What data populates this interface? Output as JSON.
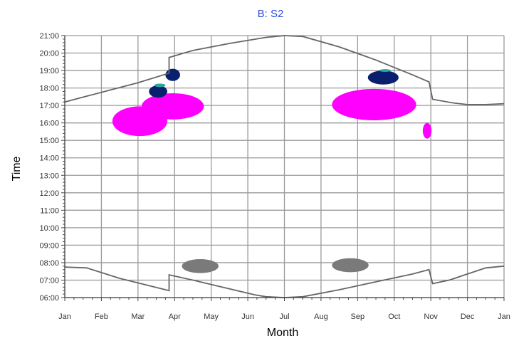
{
  "chart_data": {
    "type": "scatter",
    "title": "B: S2",
    "xlabel": "Month",
    "ylabel": "Time",
    "x_tick_labels": [
      "Jan",
      "Feb",
      "Mar",
      "Apr",
      "May",
      "Jun",
      "Jul",
      "Aug",
      "Sep",
      "Oct",
      "Nov",
      "Dec",
      "Jan"
    ],
    "y_tick_labels": [
      "06:00",
      "07:00",
      "08:00",
      "09:00",
      "10:00",
      "11:00",
      "12:00",
      "13:00",
      "14:00",
      "15:00",
      "16:00",
      "17:00",
      "18:00",
      "19:00",
      "20:00",
      "21:00"
    ],
    "xlim": [
      0,
      12
    ],
    "ylim": [
      6,
      21
    ],
    "grid": true,
    "colors": {
      "title": "#2f4fd8",
      "grid": "#9a9a9a",
      "curve": "#666666",
      "magenta": "#ff00ff",
      "navy": "#0a1f6e",
      "teal": "#2aa79b",
      "gray": "#7a7a7a"
    },
    "series": [
      {
        "kind": "line",
        "color": "#666666",
        "points": [
          [
            0,
            17.2
          ],
          [
            1,
            17.75
          ],
          [
            2,
            18.3
          ],
          [
            2.85,
            18.85
          ],
          [
            2.85,
            19.75
          ],
          [
            3.5,
            20.15
          ],
          [
            4.5,
            20.55
          ],
          [
            5.5,
            20.9
          ],
          [
            6.0,
            21.0
          ],
          [
            6.5,
            20.95
          ],
          [
            7.5,
            20.35
          ],
          [
            8.5,
            19.6
          ],
          [
            9.5,
            18.75
          ],
          [
            9.95,
            18.35
          ],
          [
            10.05,
            17.35
          ],
          [
            10.6,
            17.15
          ],
          [
            11.0,
            17.05
          ],
          [
            11.5,
            17.05
          ],
          [
            12,
            17.1
          ]
        ]
      },
      {
        "kind": "line",
        "color": "#666666",
        "points": [
          [
            0,
            7.75
          ],
          [
            0.6,
            7.7
          ],
          [
            1.5,
            7.1
          ],
          [
            2.85,
            6.4
          ],
          [
            2.85,
            7.3
          ],
          [
            3.5,
            7.0
          ],
          [
            4.5,
            6.5
          ],
          [
            5.2,
            6.15
          ],
          [
            5.5,
            6.05
          ],
          [
            6.0,
            6.0
          ],
          [
            6.5,
            6.05
          ],
          [
            7.5,
            6.45
          ],
          [
            8.5,
            6.9
          ],
          [
            9.5,
            7.35
          ],
          [
            9.95,
            7.6
          ],
          [
            10.05,
            6.8
          ],
          [
            10.5,
            7.0
          ],
          [
            11,
            7.35
          ],
          [
            11.5,
            7.7
          ],
          [
            12,
            7.8
          ]
        ]
      }
    ],
    "regions": [
      {
        "color": "#ff00ff",
        "cx": 2.05,
        "cy": 16.1,
        "rx": 0.75,
        "ry": 0.85
      },
      {
        "color": "#ff00ff",
        "cx": 2.95,
        "cy": 16.95,
        "rx": 0.85,
        "ry": 0.75
      },
      {
        "color": "#ff00ff",
        "cx": 8.45,
        "cy": 17.05,
        "rx": 1.15,
        "ry": 0.9
      },
      {
        "color": "#ff00ff",
        "cx": 9.9,
        "cy": 15.55,
        "rx": 0.12,
        "ry": 0.45
      },
      {
        "color": "#0a1f6e",
        "cx": 2.55,
        "cy": 17.8,
        "rx": 0.25,
        "ry": 0.35
      },
      {
        "color": "#0a1f6e",
        "cx": 2.95,
        "cy": 18.75,
        "rx": 0.2,
        "ry": 0.35
      },
      {
        "color": "#0a1f6e",
        "cx": 8.7,
        "cy": 18.6,
        "rx": 0.42,
        "ry": 0.4
      },
      {
        "color": "#2aa79b",
        "cx": 2.6,
        "cy": 18.15,
        "rx": 0.15,
        "ry": 0.1
      },
      {
        "color": "#2aa79b",
        "cx": 8.75,
        "cy": 19.0,
        "rx": 0.15,
        "ry": 0.08
      },
      {
        "color": "#7a7a7a",
        "cx": 3.7,
        "cy": 7.8,
        "rx": 0.5,
        "ry": 0.4
      },
      {
        "color": "#7a7a7a",
        "cx": 7.8,
        "cy": 7.85,
        "rx": 0.5,
        "ry": 0.4
      }
    ]
  }
}
